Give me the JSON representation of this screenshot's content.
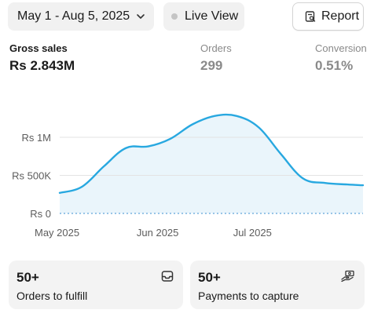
{
  "toolbar": {
    "date_range": "May 1 - Aug 5, 2025",
    "live_view": "Live View",
    "report": "Report"
  },
  "metrics": [
    {
      "label": "Gross sales",
      "value": "Rs 2.843M"
    },
    {
      "label": "Orders",
      "value": "299"
    },
    {
      "label": "Conversion",
      "value": "0.51%"
    }
  ],
  "chart_data": {
    "type": "area",
    "yticks": [
      {
        "label": "Rs 1M",
        "value": 1000000
      },
      {
        "label": "Rs 500K",
        "value": 500000
      },
      {
        "label": "Rs 0",
        "value": 0
      }
    ],
    "xticks": [
      {
        "label": "May 2025",
        "x": 1
      },
      {
        "label": "Jun 2025",
        "x": 32
      },
      {
        "label": "Jul 2025",
        "x": 62
      }
    ],
    "x": [
      1,
      8,
      15,
      22,
      29,
      36,
      43,
      50,
      57,
      64,
      71,
      78,
      85,
      92,
      97
    ],
    "values": [
      270000,
      350000,
      620000,
      860000,
      880000,
      980000,
      1170000,
      1280000,
      1280000,
      1130000,
      780000,
      460000,
      400000,
      380000,
      370000
    ],
    "baseline_value": 0,
    "ylim": [
      0,
      1300000
    ],
    "xlim": [
      1,
      97
    ],
    "line_color": "#28a8e0",
    "fill_color": "#eaf5fb",
    "grid": true
  },
  "cards": [
    {
      "count": "50+",
      "label": "Orders to fulfill",
      "icon": "inbox-icon"
    },
    {
      "count": "50+",
      "label": "Payments to capture",
      "icon": "hand-money-icon"
    }
  ]
}
